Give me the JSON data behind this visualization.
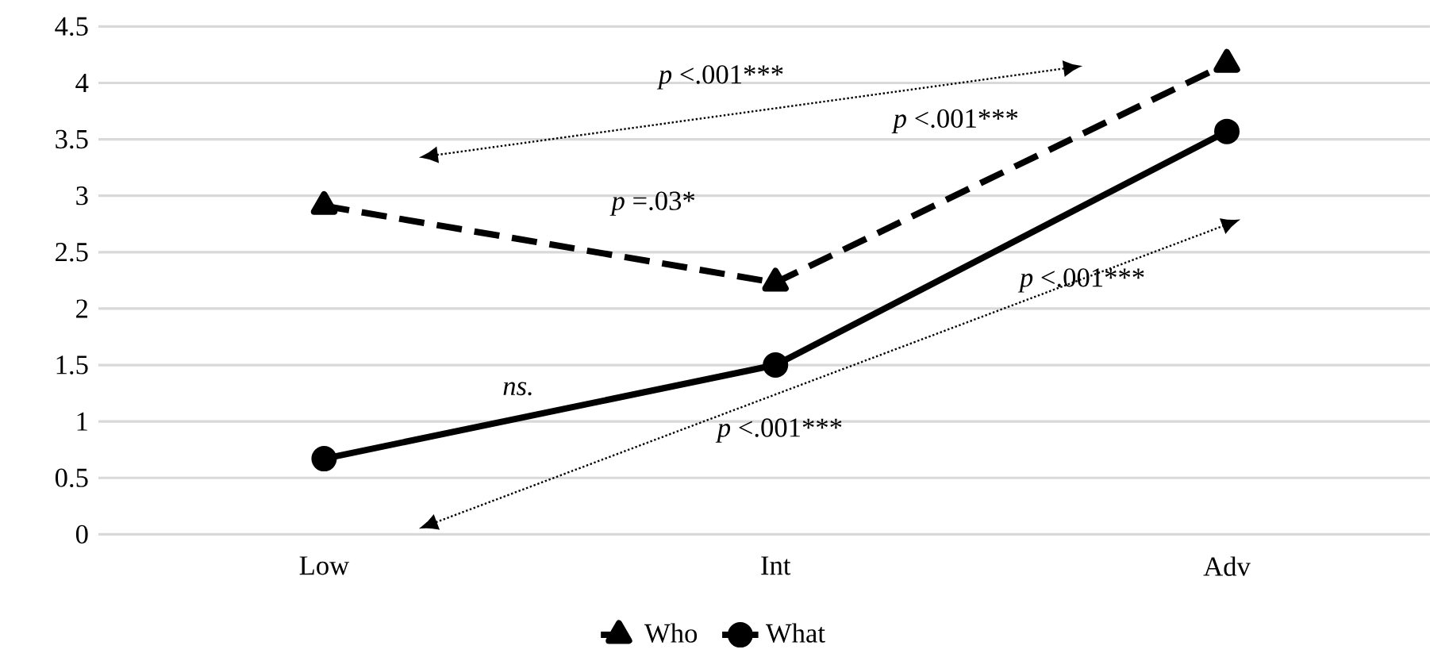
{
  "chart_data": {
    "type": "line",
    "categories": [
      "Low",
      "Int",
      "Adv"
    ],
    "series": [
      {
        "name": "Who",
        "color": "#000000",
        "values": [
          2.91,
          2.23,
          4.17
        ],
        "marker": "triangle",
        "line_style": "dashed"
      },
      {
        "name": "What",
        "color": "#000000",
        "values": [
          0.67,
          1.5,
          3.57
        ],
        "marker": "circle",
        "line_style": "solid"
      }
    ],
    "ylim": [
      0,
      4.5
    ],
    "yticks": [
      0,
      0.5,
      1,
      1.5,
      2,
      2.5,
      3,
      3.5,
      4,
      4.5
    ],
    "grid": "y",
    "legend": "bottom",
    "annotations": [
      "*p* <.001***",
      "*p* =.03*",
      "*p* <.001***",
      "ns.",
      "*p* <.001***",
      "*p* <.001***"
    ]
  }
}
